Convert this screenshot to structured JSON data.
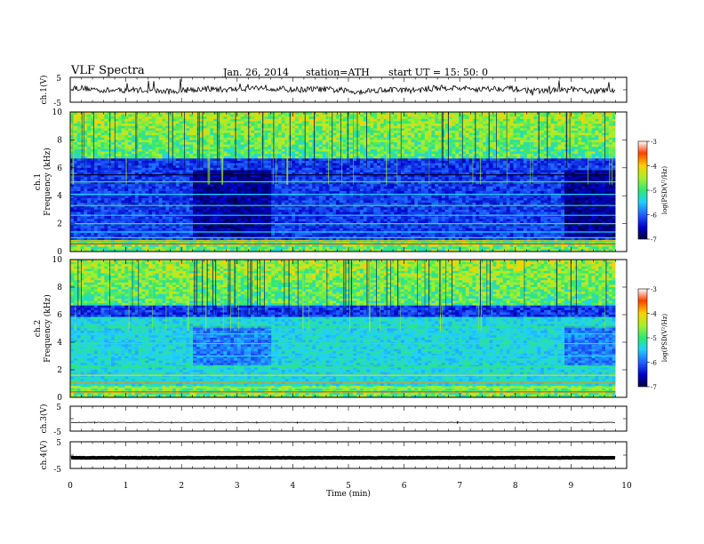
{
  "header": {
    "title": "VLF  Spectra",
    "date": "Jan. 26, 2014",
    "station": "station=ATH",
    "start": "start  UT  =   15: 50: 0"
  },
  "chart_data": [
    {
      "type": "line",
      "panel": "ch1-waveform",
      "ylabel": "ch.1(V)",
      "yticks": [
        "5",
        "-5"
      ],
      "ylim": [
        -5,
        5
      ],
      "baseline": 0.1,
      "xlim": [
        0,
        10
      ]
    },
    {
      "type": "heatmap",
      "panel": "ch1-spectrogram",
      "ylabel": [
        "ch.1",
        "Frequency (kHz)"
      ],
      "yticks": [
        "0",
        "2",
        "4",
        "6",
        "8",
        "10"
      ],
      "ylim": [
        0,
        10
      ],
      "xlim": [
        0,
        9.8
      ],
      "colorbar": {
        "label": "log(PSD(V²/Hz)",
        "ticks": [
          "-3",
          "-4",
          "-5",
          "-6",
          "-7"
        ],
        "range": [
          -7,
          -3
        ]
      }
    },
    {
      "type": "heatmap",
      "panel": "ch2-spectrogram",
      "ylabel": [
        "ch.2",
        "Frequency (kHz)"
      ],
      "yticks": [
        "0",
        "2",
        "4",
        "6",
        "8",
        "10"
      ],
      "ylim": [
        0,
        10
      ],
      "xlim": [
        0,
        9.8
      ],
      "colorbar": {
        "label": "log(PSD(V²/Hz)",
        "ticks": [
          "-3",
          "-4",
          "-5",
          "-6",
          "-7"
        ],
        "range": [
          -7,
          -3
        ]
      }
    },
    {
      "type": "line",
      "panel": "ch3-waveform",
      "ylabel": "ch.3(V)",
      "yticks": [
        "5",
        "-5"
      ],
      "ylim": [
        -5,
        5
      ],
      "baseline": -1.5,
      "xlim": [
        0,
        10
      ]
    },
    {
      "type": "line",
      "panel": "ch4-waveform",
      "ylabel": "ch.4(V)",
      "yticks": [
        "5",
        "-5"
      ],
      "ylim": [
        -5,
        5
      ],
      "baseline": -1.0,
      "xlim": [
        0,
        10
      ]
    }
  ],
  "x_axis": {
    "label": "Time  (min)",
    "ticks": [
      "0",
      "1",
      "2",
      "3",
      "4",
      "5",
      "6",
      "7",
      "8",
      "9",
      "10"
    ],
    "xlim": [
      0,
      10
    ]
  }
}
